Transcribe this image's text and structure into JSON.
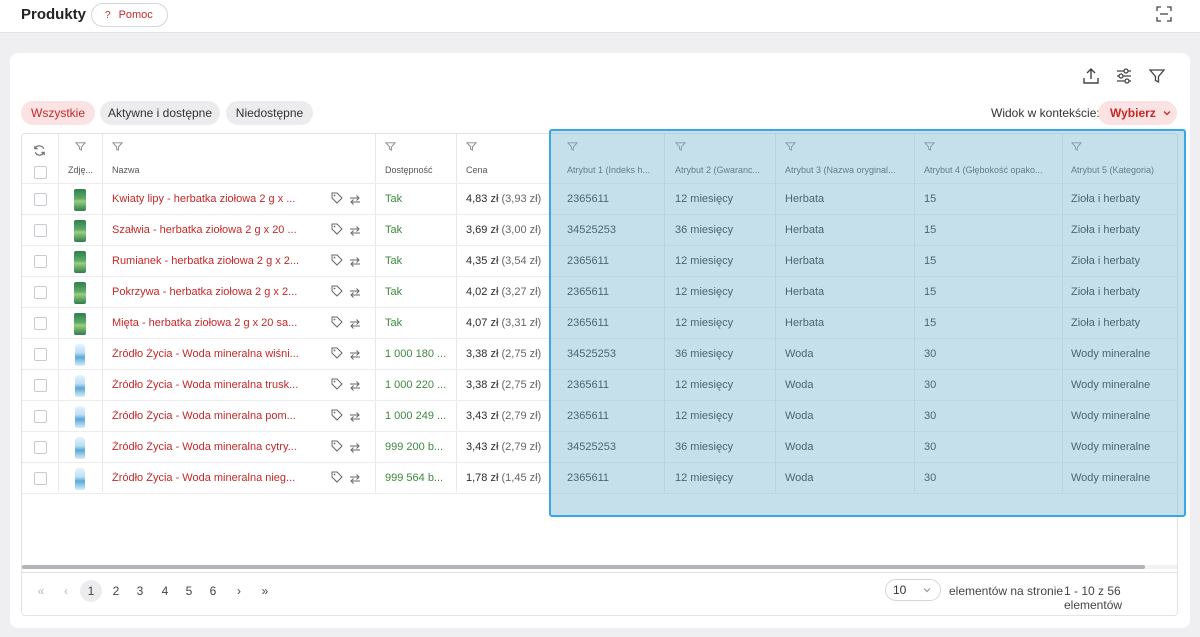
{
  "header": {
    "title": "Produkty",
    "help_label": "Pomoc",
    "help_glyph": "?",
    "icons": [
      "scan-icon"
    ]
  },
  "toolbar": {
    "icons": [
      "export-icon",
      "sliders-icon",
      "filter-icon"
    ]
  },
  "filters": {
    "chips": [
      {
        "label": "Wszystkie",
        "active": true
      },
      {
        "label": "Aktywne i dostępne",
        "active": false
      },
      {
        "label": "Niedostępne",
        "active": false
      }
    ],
    "context_label": "Widok w kontekście:",
    "context_select": "Wybierz"
  },
  "table": {
    "columns": [
      "",
      "Zdję...",
      "Nazwa",
      "Dostępność",
      "Cena",
      "Atrybut 1 (Indeks h...",
      "Atrybut 2 (Gwaranc...",
      "Atrybut 3 (Nazwa oryginal...",
      "Atrybut 4 (Głębokość opako...",
      "Atrybut 5 (Kategoria)"
    ],
    "rows": [
      {
        "img": "tea",
        "name": "Kwiaty lipy - herbatka ziołowa 2 g x ...",
        "avail": "Tak",
        "price": "4,83 zł",
        "net": "(3,93 zł)",
        "a1": "2365611",
        "a2": "12 miesięcy",
        "a3": "Herbata",
        "a4": "15",
        "a5": "Zioła i herbaty"
      },
      {
        "img": "tea",
        "name": "Szałwia - herbatka ziołowa 2 g x 20 ...",
        "avail": "Tak",
        "price": "3,69 zł",
        "net": "(3,00 zł)",
        "a1": "34525253",
        "a2": "36 miesięcy",
        "a3": "Herbata",
        "a4": "15",
        "a5": "Zioła i herbaty"
      },
      {
        "img": "tea",
        "name": "Rumianek - herbatka ziołowa 2 g x 2...",
        "avail": "Tak",
        "price": "4,35 zł",
        "net": "(3,54 zł)",
        "a1": "2365611",
        "a2": "12 miesięcy",
        "a3": "Herbata",
        "a4": "15",
        "a5": "Zioła i herbaty"
      },
      {
        "img": "tea",
        "name": "Pokrzywa - herbatka ziołowa 2 g x 2...",
        "avail": "Tak",
        "price": "4,02 zł",
        "net": "(3,27 zł)",
        "a1": "2365611",
        "a2": "12 miesięcy",
        "a3": "Herbata",
        "a4": "15",
        "a5": "Zioła i herbaty"
      },
      {
        "img": "tea",
        "name": "Mięta - herbatka ziołowa 2 g x 20 sa...",
        "avail": "Tak",
        "price": "4,07 zł",
        "net": "(3,31 zł)",
        "a1": "2365611",
        "a2": "12 miesięcy",
        "a3": "Herbata",
        "a4": "15",
        "a5": "Zioła i herbaty"
      },
      {
        "img": "water",
        "name": "Źródło Życia - Woda mineralna wiśni...",
        "avail": "1 000 180 ...",
        "price": "3,38 zł",
        "net": "(2,75 zł)",
        "a1": "34525253",
        "a2": "36 miesięcy",
        "a3": "Woda",
        "a4": "30",
        "a5": "Wody mineralne"
      },
      {
        "img": "water",
        "name": "Źródło Życia - Woda mineralna trusk...",
        "avail": "1 000 220 ...",
        "price": "3,38 zł",
        "net": "(2,75 zł)",
        "a1": "2365611",
        "a2": "12 miesięcy",
        "a3": "Woda",
        "a4": "30",
        "a5": "Wody mineralne"
      },
      {
        "img": "water",
        "name": "Źródło Życia - Woda mineralna pom...",
        "avail": "1 000 249 ...",
        "price": "3,43 zł",
        "net": "(2,79 zł)",
        "a1": "2365611",
        "a2": "12 miesięcy",
        "a3": "Woda",
        "a4": "30",
        "a5": "Wody mineralne"
      },
      {
        "img": "water",
        "name": "Źródło Życia - Woda mineralna cytry...",
        "avail": "999 200 b...",
        "price": "3,43 zł",
        "net": "(2,79 zł)",
        "a1": "34525253",
        "a2": "36 miesięcy",
        "a3": "Woda",
        "a4": "30",
        "a5": "Wody mineralne"
      },
      {
        "img": "water",
        "name": "Źródło Życia - Woda mineralna nieg...",
        "avail": "999 564 b...",
        "price": "1,78 zł",
        "net": "(1,45 zł)",
        "a1": "2365611",
        "a2": "12 miesięcy",
        "a3": "Woda",
        "a4": "30",
        "a5": "Wody mineralne"
      }
    ],
    "row_icons": [
      "tag-icon",
      "swap-icon"
    ]
  },
  "pagination": {
    "first": "«",
    "prev": "‹",
    "pages": [
      "1",
      "2",
      "3",
      "4",
      "5",
      "6"
    ],
    "current": "1",
    "next": "›",
    "last": "»",
    "per_page": "10",
    "per_page_label": "elementów na stronie",
    "range": "1 - 10 z 56 elementów"
  },
  "colors": {
    "accent": "#c62828",
    "available": "#3d8a3d",
    "selection_overlay": "#78b6d0",
    "selection_border": "#3aa7e0"
  }
}
